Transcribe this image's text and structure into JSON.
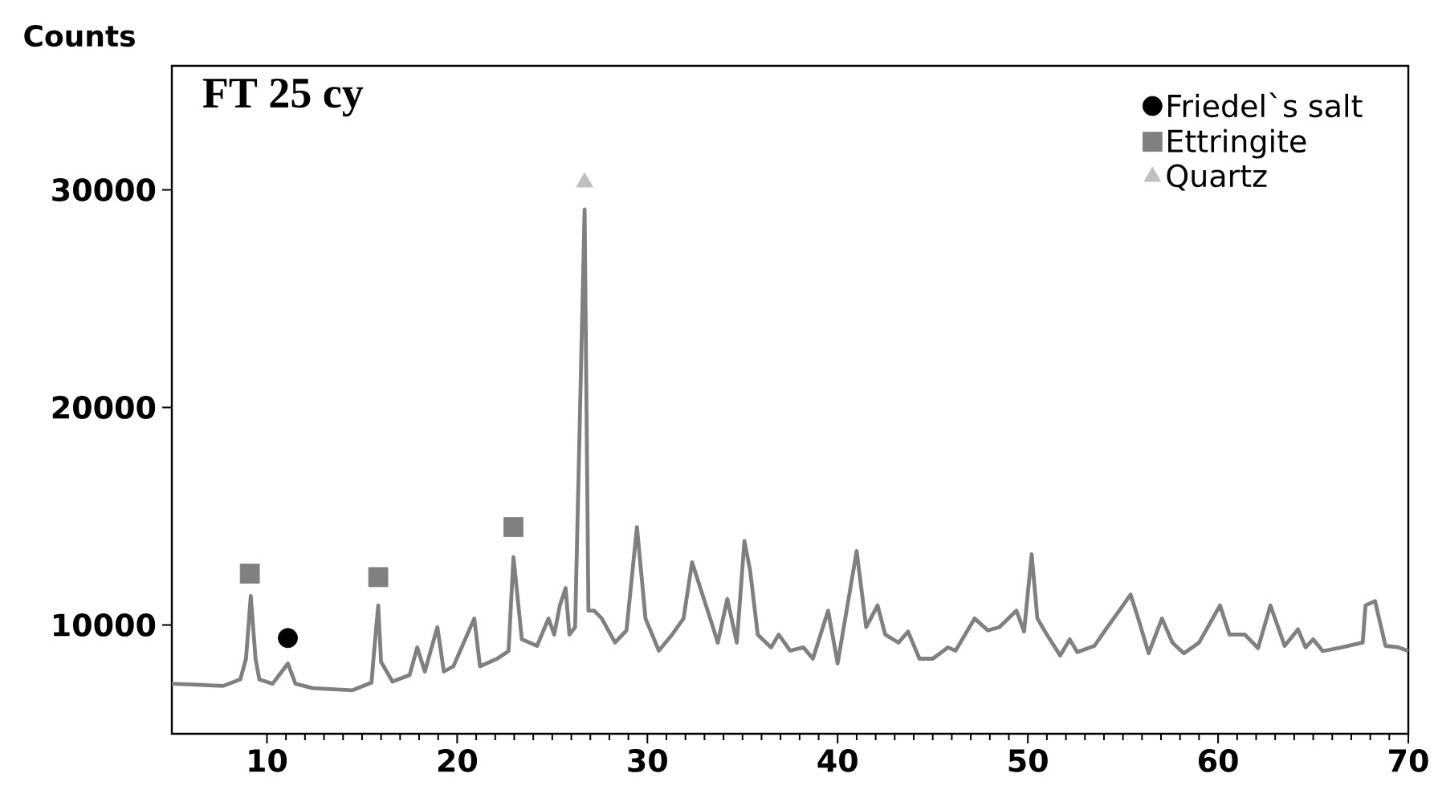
{
  "chart_data": {
    "type": "line",
    "title": "FT 25 cy",
    "ylabel": "Counts",
    "xlim": [
      5,
      70
    ],
    "ylim": [
      5000,
      35700
    ],
    "xticks": [
      10,
      20,
      30,
      40,
      50,
      60,
      70
    ],
    "yticks": [
      10000,
      20000,
      30000
    ],
    "legend": "top right",
    "series": [
      {
        "color": "#808080",
        "x": [
          5,
          7.7,
          8.6,
          8.9,
          9.15,
          9.4,
          9.6,
          10.3,
          11.1,
          11.5,
          12.4,
          14.5,
          15.5,
          15.6,
          15.85,
          16.0,
          16.6,
          17.5,
          17.9,
          18.3,
          18.96,
          19.3,
          19.8,
          20.9,
          21.2,
          22.1,
          22.7,
          22.96,
          23.4,
          24.2,
          24.8,
          25.1,
          25.4,
          25.7,
          25.9,
          26.2,
          26.7,
          26.9,
          27.2,
          27.6,
          28.3,
          28.9,
          29.45,
          29.9,
          30.6,
          31.3,
          31.9,
          32.35,
          32.8,
          33.3,
          33.7,
          34.2,
          34.7,
          35.1,
          35.4,
          35.8,
          36.5,
          36.9,
          37.5,
          38.2,
          38.7,
          39.5,
          40.0,
          41.0,
          41.5,
          42.1,
          42.5,
          43.2,
          43.7,
          44.3,
          45.0,
          45.8,
          46.2,
          47.2,
          47.9,
          48.5,
          49.4,
          49.8,
          50.2,
          50.5,
          51.0,
          51.7,
          52.2,
          52.6,
          53.5,
          54.1,
          55.0,
          55.4,
          55.8,
          56.35,
          57.05,
          57.6,
          58.2,
          59.0,
          60.1,
          60.6,
          61.4,
          62.1,
          62.75,
          63.5,
          64.2,
          64.6,
          65.0,
          65.5,
          66.5,
          67.6,
          67.75,
          68.25,
          68.8,
          69.5,
          70
        ],
        "values": [
          7300,
          7200,
          7500,
          8450,
          11330,
          8450,
          7500,
          7300,
          8230,
          7300,
          7100,
          7000,
          7350,
          8450,
          10900,
          8300,
          7400,
          7700,
          8970,
          7860,
          9900,
          7860,
          8100,
          10300,
          8100,
          8450,
          8800,
          13120,
          9340,
          9040,
          10300,
          9560,
          10900,
          11700,
          9560,
          9900,
          29100,
          10660,
          10660,
          10300,
          9190,
          9750,
          14500,
          10300,
          8820,
          9560,
          10300,
          12880,
          11650,
          10300,
          9190,
          11200,
          9190,
          13860,
          12500,
          9560,
          8970,
          9560,
          8820,
          8970,
          8450,
          10660,
          8230,
          13400,
          9900,
          10900,
          9560,
          9190,
          9700,
          8450,
          8450,
          8970,
          8820,
          10300,
          9750,
          9900,
          10660,
          9700,
          13250,
          10300,
          9560,
          8600,
          9340,
          8750,
          9040,
          9800,
          10900,
          11400,
          10300,
          8700,
          10300,
          9190,
          8700,
          9190,
          10900,
          9560,
          9560,
          8940,
          10900,
          9040,
          9800,
          8970,
          9340,
          8800,
          8970,
          9190,
          10900,
          11100,
          9040,
          8970,
          8800
        ]
      },
      {
        "type": "scatter",
        "name": "Friedel`s salt",
        "color": "#000000",
        "marker": "circle",
        "x": [
          11.1
        ],
        "values": [
          9400
        ]
      },
      {
        "type": "scatter",
        "name": "Ettringite",
        "color": "#808080",
        "marker": "square",
        "x": [
          9.1,
          15.85,
          22.96
        ],
        "values": [
          12360,
          12200,
          14500
        ]
      },
      {
        "type": "scatter",
        "name": "Quartz",
        "color": "#c0c0c0",
        "marker": "triangle",
        "x": [
          26.7
        ],
        "values": [
          30350
        ]
      }
    ]
  }
}
